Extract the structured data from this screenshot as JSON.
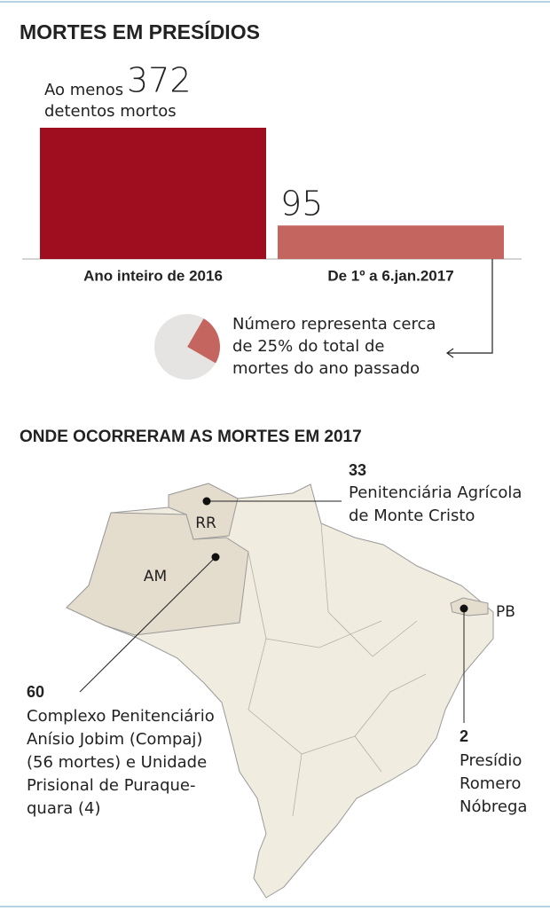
{
  "chart_data": [
    {
      "type": "bar",
      "title": "MORTES EM PRESÍDIOS",
      "categories": [
        "Ano inteiro de 2016",
        "De 1º a 6.jan.2017"
      ],
      "values": [
        372,
        95
      ],
      "colors": [
        "#9e0e1f",
        "#c4665f"
      ],
      "annotations": [
        "Ao menos",
        "detentos mortos"
      ]
    },
    {
      "type": "pie",
      "values": [
        25,
        75
      ],
      "colors": [
        "#c4665f",
        "#e6e4e2"
      ],
      "note": [
        "Número representa cerca",
        "de 25% do total de",
        "mortes do ano passado"
      ]
    }
  ],
  "map": {
    "title": "ONDE OCORRERAM AS MORTES EM 2017",
    "regions": [
      "RR",
      "AM",
      "PB"
    ],
    "callouts": [
      {
        "value": 33,
        "lines": [
          "Penitenciária Agrícola",
          "de Monte Cristo"
        ]
      },
      {
        "value": 60,
        "lines": [
          "Complexo Penitenciário",
          "Anísio Jobim (Compaj)",
          "(56 mortes) e Unidade",
          "Prisional de Puraque-",
          "quara (4)"
        ]
      },
      {
        "value": 2,
        "lines": [
          "Presídio",
          "Romero",
          "Nóbrega"
        ]
      }
    ]
  }
}
